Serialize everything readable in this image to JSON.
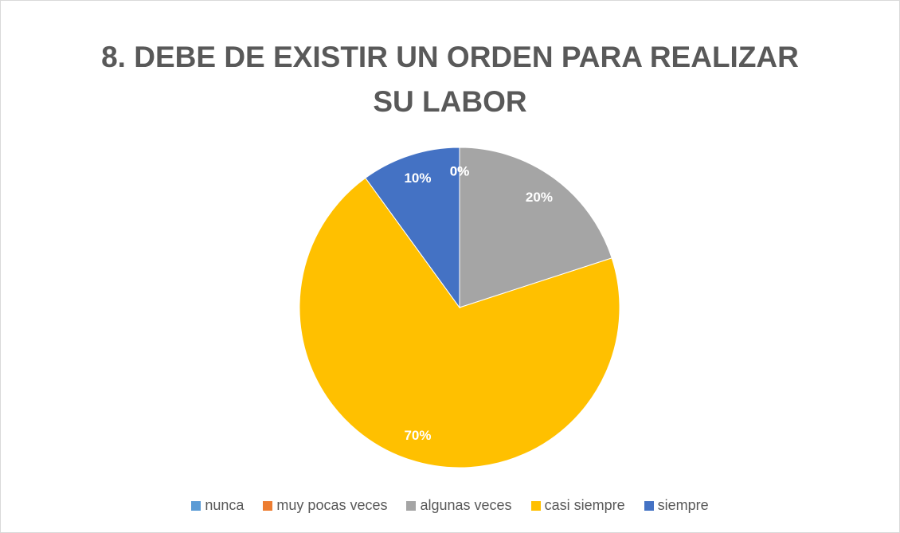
{
  "chart_data": {
    "type": "pie",
    "title": "8. DEBE DE EXISTIR UN ORDEN PARA REALIZAR SU LABOR",
    "categories": [
      "nunca",
      "muy pocas veces",
      "algunas veces",
      "casi siempre",
      "siempre"
    ],
    "values": [
      0,
      0,
      20,
      70,
      10
    ],
    "value_labels": [
      "0%",
      "0%",
      "20%",
      "70%",
      "10%"
    ],
    "colors": [
      "#5b9bd5",
      "#ed7d31",
      "#a5a5a5",
      "#ffc000",
      "#4472c4"
    ],
    "legend": "bottom"
  }
}
